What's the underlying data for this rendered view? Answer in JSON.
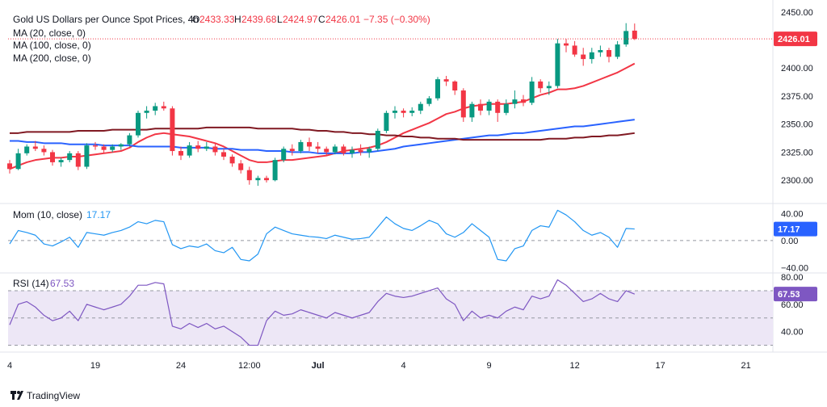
{
  "header": {
    "title": "Gold US Dollars per Ounce Spot Prices, 4h",
    "o_label": "O",
    "o_value": "2433.33",
    "h_label": "H",
    "h_value": "2439.68",
    "l_label": "L",
    "l_value": "2424.97",
    "c_label": "C",
    "c_value": "2426.01",
    "change": "−7.35 (−0.30%)",
    "ma_lines": [
      "MA (20, close, 0)",
      "MA (100, close, 0)",
      "MA (200, close, 0)"
    ]
  },
  "mom_panel": {
    "label": "Mom (10, close)",
    "value": "17.17"
  },
  "rsi_panel": {
    "label": "RSI (14)",
    "value": "67.53"
  },
  "branding": {
    "name": "TradingView"
  },
  "colors": {
    "up": "#089981",
    "down": "#f23645",
    "ma20": "#f23645",
    "ma100": "#2962ff",
    "ma200": "#801922",
    "mom": "#2196f3",
    "rsi": "#7e57c2",
    "rsi_band": "#ede7f6",
    "price_badge": "#f23645",
    "value_badge": "#2962ff"
  },
  "chart_data": [
    {
      "type": "candlestick",
      "title": "Gold US Dollars per Ounce Spot Prices, 4h",
      "ylim": [
        2285,
        2452
      ],
      "y_ticks": [
        "2450.00",
        "2425.00",
        "2400.00",
        "2375.00",
        "2350.00",
        "2325.00",
        "2300.00"
      ],
      "y_tick_values": [
        2450,
        2425,
        2400,
        2375,
        2350,
        2325,
        2300
      ],
      "last_price": "2426.01",
      "last_price_value": 2426.01,
      "x_ticks": [
        "4",
        "19",
        "24",
        "12:00",
        "Jul",
        "4",
        "9",
        "12",
        "17",
        "21"
      ],
      "x_tick_positions": [
        0,
        10,
        20,
        28,
        36,
        46,
        56,
        66,
        76,
        86
      ],
      "candles": [
        [
          2315,
          2318,
          2306,
          2310
        ],
        [
          2310,
          2328,
          2309,
          2324
        ],
        [
          2324,
          2332,
          2322,
          2330
        ],
        [
          2330,
          2335,
          2326,
          2328
        ],
        [
          2328,
          2331,
          2322,
          2325
        ],
        [
          2325,
          2327,
          2313,
          2316
        ],
        [
          2316,
          2320,
          2312,
          2318
        ],
        [
          2318,
          2326,
          2316,
          2324
        ],
        [
          2324,
          2326,
          2309,
          2312
        ],
        [
          2312,
          2333,
          2310,
          2331
        ],
        [
          2331,
          2334,
          2327,
          2330
        ],
        [
          2330,
          2332,
          2324,
          2327
        ],
        [
          2327,
          2332,
          2325,
          2330
        ],
        [
          2330,
          2333,
          2327,
          2332
        ],
        [
          2332,
          2342,
          2330,
          2340
        ],
        [
          2340,
          2362,
          2338,
          2360
        ],
        [
          2360,
          2366,
          2355,
          2362
        ],
        [
          2362,
          2369,
          2358,
          2366
        ],
        [
          2366,
          2370,
          2362,
          2364
        ],
        [
          2364,
          2366,
          2322,
          2326
        ],
        [
          2326,
          2330,
          2318,
          2322
        ],
        [
          2322,
          2334,
          2320,
          2331
        ],
        [
          2331,
          2335,
          2325,
          2328
        ],
        [
          2328,
          2334,
          2326,
          2330
        ],
        [
          2330,
          2333,
          2322,
          2325
        ],
        [
          2325,
          2328,
          2318,
          2321
        ],
        [
          2321,
          2323,
          2312,
          2315
        ],
        [
          2315,
          2318,
          2306,
          2309
        ],
        [
          2309,
          2312,
          2296,
          2300
        ],
        [
          2300,
          2304,
          2295,
          2302
        ],
        [
          2302,
          2304,
          2298,
          2300
        ],
        [
          2300,
          2320,
          2299,
          2318
        ],
        [
          2318,
          2330,
          2316,
          2328
        ],
        [
          2328,
          2332,
          2322,
          2326
        ],
        [
          2326,
          2336,
          2324,
          2334
        ],
        [
          2334,
          2338,
          2326,
          2330
        ],
        [
          2330,
          2334,
          2324,
          2328
        ],
        [
          2328,
          2330,
          2322,
          2325
        ],
        [
          2325,
          2332,
          2323,
          2330
        ],
        [
          2330,
          2332,
          2322,
          2324
        ],
        [
          2324,
          2330,
          2320,
          2327
        ],
        [
          2327,
          2332,
          2322,
          2325
        ],
        [
          2325,
          2330,
          2320,
          2328
        ],
        [
          2328,
          2346,
          2326,
          2344
        ],
        [
          2344,
          2362,
          2342,
          2360
        ],
        [
          2360,
          2366,
          2355,
          2362
        ],
        [
          2362,
          2364,
          2356,
          2360
        ],
        [
          2360,
          2365,
          2357,
          2362
        ],
        [
          2362,
          2370,
          2359,
          2368
        ],
        [
          2368,
          2375,
          2366,
          2373
        ],
        [
          2373,
          2392,
          2371,
          2390
        ],
        [
          2390,
          2393,
          2384,
          2388
        ],
        [
          2388,
          2389,
          2376,
          2380
        ],
        [
          2380,
          2382,
          2352,
          2356
        ],
        [
          2356,
          2370,
          2352,
          2368
        ],
        [
          2368,
          2372,
          2358,
          2362
        ],
        [
          2362,
          2372,
          2358,
          2370
        ],
        [
          2370,
          2372,
          2352,
          2360
        ],
        [
          2360,
          2372,
          2358,
          2368
        ],
        [
          2368,
          2380,
          2364,
          2372
        ],
        [
          2372,
          2376,
          2366,
          2369
        ],
        [
          2369,
          2392,
          2367,
          2388
        ],
        [
          2388,
          2390,
          2378,
          2382
        ],
        [
          2382,
          2388,
          2376,
          2384
        ],
        [
          2384,
          2426,
          2382,
          2422
        ],
        [
          2422,
          2426,
          2414,
          2420
        ],
        [
          2420,
          2424,
          2410,
          2412
        ],
        [
          2412,
          2418,
          2402,
          2408
        ],
        [
          2408,
          2418,
          2404,
          2414
        ],
        [
          2414,
          2420,
          2410,
          2416
        ],
        [
          2416,
          2418,
          2405,
          2410
        ],
        [
          2410,
          2424,
          2408,
          2421
        ],
        [
          2421,
          2440,
          2419,
          2433
        ],
        [
          2433.33,
          2439.68,
          2424.97,
          2426.01
        ]
      ],
      "series": [
        {
          "name": "MA (20, close, 0)",
          "values": [
            2310,
            2313,
            2316,
            2318,
            2319,
            2320,
            2320,
            2321,
            2321,
            2322,
            2323,
            2324,
            2325,
            2326,
            2329,
            2334,
            2338,
            2341,
            2342,
            2341,
            2340,
            2339,
            2337,
            2335,
            2333,
            2330,
            2326,
            2322,
            2318,
            2316,
            2316,
            2317,
            2318,
            2318,
            2319,
            2320,
            2321,
            2322,
            2324,
            2326,
            2327,
            2328,
            2329,
            2331,
            2334,
            2338,
            2342,
            2345,
            2348,
            2351,
            2355,
            2359,
            2361,
            2364,
            2366,
            2367,
            2368,
            2368,
            2368,
            2369,
            2370,
            2373,
            2376,
            2378,
            2381,
            2381,
            2382,
            2384,
            2387,
            2390,
            2393,
            2396,
            2400,
            2404
          ]
        },
        {
          "name": "MA (100, close, 0)",
          "values": [
            2335,
            2335,
            2334,
            2334,
            2333,
            2333,
            2333,
            2332,
            2332,
            2332,
            2332,
            2331,
            2331,
            2331,
            2331,
            2330,
            2330,
            2330,
            2330,
            2330,
            2329,
            2329,
            2329,
            2329,
            2328,
            2328,
            2328,
            2327,
            2327,
            2327,
            2326,
            2326,
            2326,
            2325,
            2325,
            2325,
            2324,
            2324,
            2324,
            2324,
            2324,
            2325,
            2325,
            2326,
            2327,
            2328,
            2330,
            2331,
            2332,
            2333,
            2334,
            2335,
            2336,
            2337,
            2338,
            2339,
            2340,
            2340,
            2341,
            2342,
            2342,
            2343,
            2344,
            2345,
            2346,
            2347,
            2348,
            2348,
            2349,
            2350,
            2351,
            2352,
            2353,
            2354
          ]
        },
        {
          "name": "MA (200, close, 0)",
          "values": [
            2342,
            2342,
            2343,
            2343,
            2343,
            2343,
            2343,
            2343,
            2344,
            2344,
            2344,
            2344,
            2345,
            2345,
            2345,
            2345,
            2345,
            2346,
            2346,
            2346,
            2346,
            2346,
            2346,
            2347,
            2347,
            2347,
            2347,
            2347,
            2347,
            2346,
            2346,
            2346,
            2346,
            2346,
            2345,
            2345,
            2344,
            2344,
            2343,
            2343,
            2342,
            2342,
            2341,
            2341,
            2340,
            2340,
            2339,
            2339,
            2338,
            2338,
            2337,
            2337,
            2337,
            2336,
            2336,
            2336,
            2336,
            2336,
            2336,
            2336,
            2336,
            2336,
            2336,
            2337,
            2337,
            2337,
            2338,
            2338,
            2339,
            2339,
            2340,
            2340,
            2341,
            2342
          ]
        }
      ]
    },
    {
      "type": "line",
      "title": "Mom (10, close)",
      "ylim": [
        -48,
        55
      ],
      "y_ticks": [
        "40.00",
        "0.00",
        "−40.00"
      ],
      "y_tick_values": [
        40,
        0,
        -40
      ],
      "last_value": "17.17",
      "last_value_num": 17.17,
      "series": [
        {
          "name": "Mom (10, close)",
          "values": [
            -5,
            15,
            12,
            8,
            -5,
            -8,
            -2,
            5,
            -10,
            12,
            10,
            8,
            12,
            15,
            20,
            28,
            25,
            30,
            28,
            -6,
            -12,
            -8,
            -10,
            -5,
            -15,
            -18,
            -10,
            -28,
            -30,
            -20,
            10,
            20,
            15,
            10,
            8,
            6,
            5,
            3,
            8,
            5,
            2,
            3,
            5,
            20,
            35,
            25,
            18,
            15,
            22,
            30,
            25,
            10,
            5,
            12,
            25,
            15,
            5,
            -28,
            -30,
            -12,
            -8,
            15,
            22,
            20,
            45,
            38,
            28,
            15,
            8,
            12,
            5,
            -10,
            18,
            17.17
          ]
        }
      ]
    },
    {
      "type": "line",
      "title": "RSI (14)",
      "ylim": [
        25,
        83
      ],
      "y_ticks": [
        "80.00",
        "60.00",
        "40.00"
      ],
      "y_tick_values": [
        80,
        60,
        40
      ],
      "band": [
        30,
        70
      ],
      "midline": 50,
      "last_value": "67.53",
      "last_value_num": 67.53,
      "series": [
        {
          "name": "RSI (14)",
          "values": [
            45,
            60,
            62,
            58,
            52,
            48,
            50,
            55,
            48,
            60,
            58,
            56,
            58,
            60,
            66,
            74,
            74,
            76,
            75,
            44,
            42,
            46,
            43,
            46,
            42,
            44,
            40,
            36,
            30,
            30,
            48,
            55,
            52,
            53,
            56,
            54,
            52,
            50,
            54,
            52,
            50,
            52,
            54,
            62,
            68,
            66,
            65,
            66,
            68,
            70,
            72,
            64,
            60,
            48,
            55,
            50,
            52,
            50,
            55,
            58,
            56,
            66,
            64,
            66,
            78,
            74,
            68,
            62,
            64,
            68,
            64,
            62,
            70,
            67.53
          ]
        }
      ]
    }
  ]
}
